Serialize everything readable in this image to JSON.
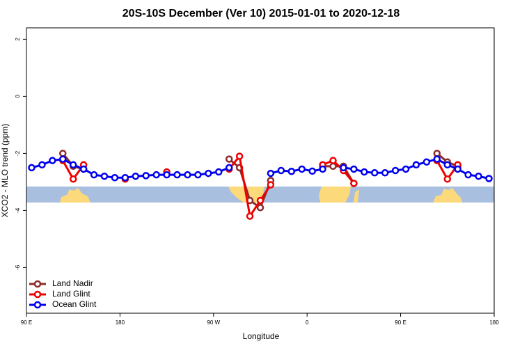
{
  "chart_data": {
    "type": "line",
    "title": "20S-10S December (Ver 10)   2015-01-01 to 2020-12-18",
    "x_label": "Longitude",
    "y_label": "XCO2 - MLO trend (ppm)",
    "x": [
      95,
      105,
      115,
      125,
      135,
      145,
      155,
      165,
      175,
      185,
      195,
      205,
      215,
      225,
      235,
      245,
      255,
      265,
      275,
      285,
      295,
      305,
      315,
      325,
      335,
      345,
      355,
      365,
      375,
      385,
      395,
      405,
      415,
      425,
      435,
      445,
      455,
      465,
      475,
      485,
      495,
      505,
      515,
      525,
      535
    ],
    "series": [
      {
        "name": "Land Nadir",
        "color": "#8b2a2a",
        "values": [
          null,
          null,
          null,
          -2.0,
          -2.45,
          -2.55,
          null,
          null,
          null,
          null,
          null,
          null,
          null,
          null,
          null,
          null,
          null,
          null,
          null,
          -2.2,
          -2.5,
          -3.65,
          -3.9,
          -2.95,
          null,
          null,
          null,
          null,
          -2.45,
          -2.45,
          -2.45,
          -3.05,
          null,
          null,
          null,
          null,
          null,
          null,
          null,
          -2.0,
          -2.3,
          -2.45,
          null,
          null,
          null
        ]
      },
      {
        "name": "Land Glint",
        "color": "#ee0000",
        "values": [
          null,
          null,
          null,
          -2.25,
          -2.9,
          -2.4,
          null,
          null,
          null,
          -2.9,
          null,
          null,
          null,
          -2.65,
          null,
          null,
          null,
          null,
          null,
          -2.55,
          -2.1,
          -4.2,
          -3.65,
          -3.1,
          null,
          null,
          null,
          null,
          -2.4,
          -2.25,
          -2.6,
          -3.05,
          null,
          null,
          null,
          null,
          null,
          null,
          null,
          -2.25,
          -2.9,
          -2.4,
          null,
          null,
          null
        ]
      },
      {
        "name": "Ocean Glint",
        "color": "#0000ee",
        "values": [
          -2.5,
          -2.4,
          -2.25,
          -2.2,
          -2.4,
          -2.55,
          -2.75,
          -2.8,
          -2.85,
          -2.85,
          -2.8,
          -2.78,
          -2.75,
          -2.75,
          -2.75,
          -2.75,
          -2.75,
          -2.7,
          -2.65,
          -2.5,
          null,
          null,
          null,
          -2.7,
          -2.6,
          -2.63,
          -2.55,
          -2.62,
          -2.55,
          null,
          -2.5,
          -2.55,
          -2.65,
          -2.68,
          -2.68,
          -2.6,
          -2.55,
          -2.4,
          -2.3,
          -2.2,
          -2.4,
          -2.55,
          -2.75,
          -2.8,
          -2.88
        ]
      }
    ],
    "xlim": [
      90,
      540
    ],
    "xticks": [
      {
        "value": 90,
        "label": "90 E"
      },
      180,
      {
        "value": 270,
        "label": "90 W"
      },
      {
        "value": 360,
        "label": "0"
      },
      {
        "value": 450,
        "label": "90 E"
      },
      {
        "value": 540,
        "label": "180"
      }
    ],
    "ylim": [
      -7.6,
      2.4
    ],
    "yticks": [
      2,
      0,
      -2,
      -4,
      -6
    ],
    "legend": "bottom-left"
  }
}
